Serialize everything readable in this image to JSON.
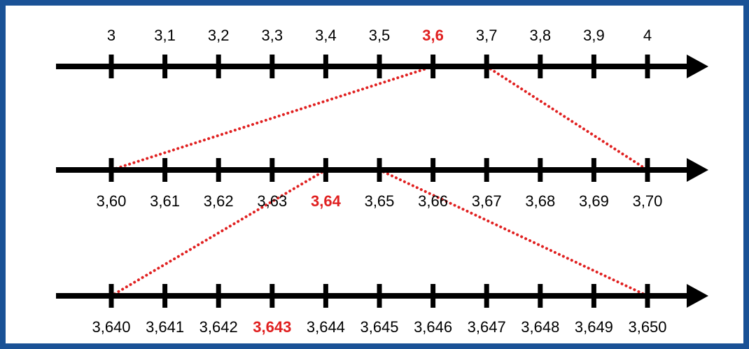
{
  "colors": {
    "frame": "#1a5296",
    "axis": "#000000",
    "highlight": "#e02020",
    "connector": "#e02020"
  },
  "number_lines": [
    {
      "name": "tenths",
      "labels": [
        "3",
        "3,1",
        "3,2",
        "3,3",
        "3,4",
        "3,5",
        "3,6",
        "3,7",
        "3,8",
        "3,9",
        "4"
      ],
      "highlight_index": 6
    },
    {
      "name": "hundredths",
      "labels": [
        "3,60",
        "3,61",
        "3,62",
        "3,63",
        "3,64",
        "3,65",
        "3,66",
        "3,67",
        "3,68",
        "3,69",
        "3,70"
      ],
      "highlight_index": 4
    },
    {
      "name": "thousandths",
      "labels": [
        "3,640",
        "3,641",
        "3,642",
        "3,643",
        "3,644",
        "3,645",
        "3,646",
        "3,647",
        "3,648",
        "3,649",
        "3,650"
      ],
      "highlight_index": 3
    }
  ],
  "zoom_connectors": [
    {
      "from_line": 0,
      "from_tick": 6,
      "to_line": 1,
      "to_tick": 0
    },
    {
      "from_line": 0,
      "from_tick": 7,
      "to_line": 1,
      "to_tick": 10
    },
    {
      "from_line": 1,
      "from_tick": 4,
      "to_line": 2,
      "to_tick": 0
    },
    {
      "from_line": 1,
      "from_tick": 5,
      "to_line": 2,
      "to_tick": 10
    }
  ]
}
